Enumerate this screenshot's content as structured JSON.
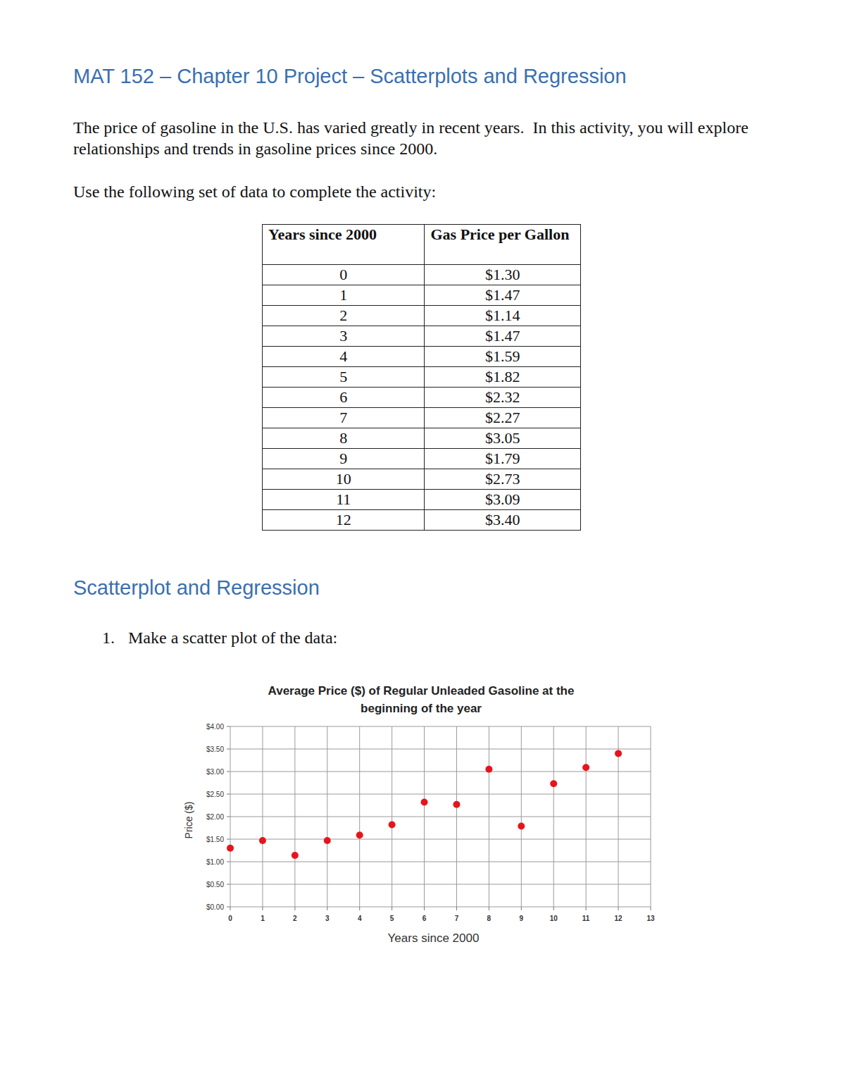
{
  "header": {
    "title": "MAT 152 – Chapter 10 Project – Scatterplots and Regression"
  },
  "intro": "The price of gasoline in the U.S. has varied greatly in recent years.  In this activity, you will explore relationships and trends in gasoline prices since 2000.",
  "instruction": "Use the following set of data to complete the activity:",
  "table": {
    "header": [
      "Years since 2000",
      "Gas Price per Gallon"
    ],
    "rows": [
      [
        "0",
        "$1.30"
      ],
      [
        "1",
        "$1.47"
      ],
      [
        "2",
        "$1.14"
      ],
      [
        "3",
        "$1.47"
      ],
      [
        "4",
        "$1.59"
      ],
      [
        "5",
        "$1.82"
      ],
      [
        "6",
        "$2.32"
      ],
      [
        "7",
        "$2.27"
      ],
      [
        "8",
        "$3.05"
      ],
      [
        "9",
        "$1.79"
      ],
      [
        "10",
        "$2.73"
      ],
      [
        "11",
        "$3.09"
      ],
      [
        "12",
        "$3.40"
      ]
    ]
  },
  "section": {
    "title": "Scatterplot and Regression"
  },
  "question": {
    "number": "1.",
    "text": "Make a scatter plot of the data:"
  },
  "chart_data": {
    "type": "scatter",
    "title": "Average Price ($) of Regular Unleaded Gasoline at the beginning of the year",
    "x_label": "Years since 2000",
    "y_label": "Price ($)",
    "x": [
      0,
      1,
      2,
      3,
      4,
      5,
      6,
      7,
      8,
      9,
      10,
      11,
      12
    ],
    "values": [
      1.3,
      1.47,
      1.14,
      1.47,
      1.59,
      1.82,
      2.32,
      2.27,
      3.05,
      1.79,
      2.73,
      3.09,
      3.4
    ],
    "color": "#e8141b",
    "marker": "circle",
    "xlim": [
      0,
      13
    ],
    "xticks": [
      0,
      1,
      2,
      3,
      4,
      5,
      6,
      7,
      8,
      9,
      10,
      11,
      12,
      13
    ],
    "ylim": [
      0,
      4
    ],
    "yticks": [
      {
        "value": 0,
        "label": "$0.00"
      },
      {
        "value": 0.5,
        "label": "$0.50"
      },
      {
        "value": 1,
        "label": "$1.00"
      },
      {
        "value": 1.5,
        "label": "$1.50"
      },
      {
        "value": 2,
        "label": "$2.00"
      },
      {
        "value": 2.5,
        "label": "$2.50"
      },
      {
        "value": 3,
        "label": "$3.00"
      },
      {
        "value": 3.5,
        "label": "$3.50"
      },
      {
        "value": 4,
        "label": "$4.00"
      }
    ],
    "grid": true
  }
}
